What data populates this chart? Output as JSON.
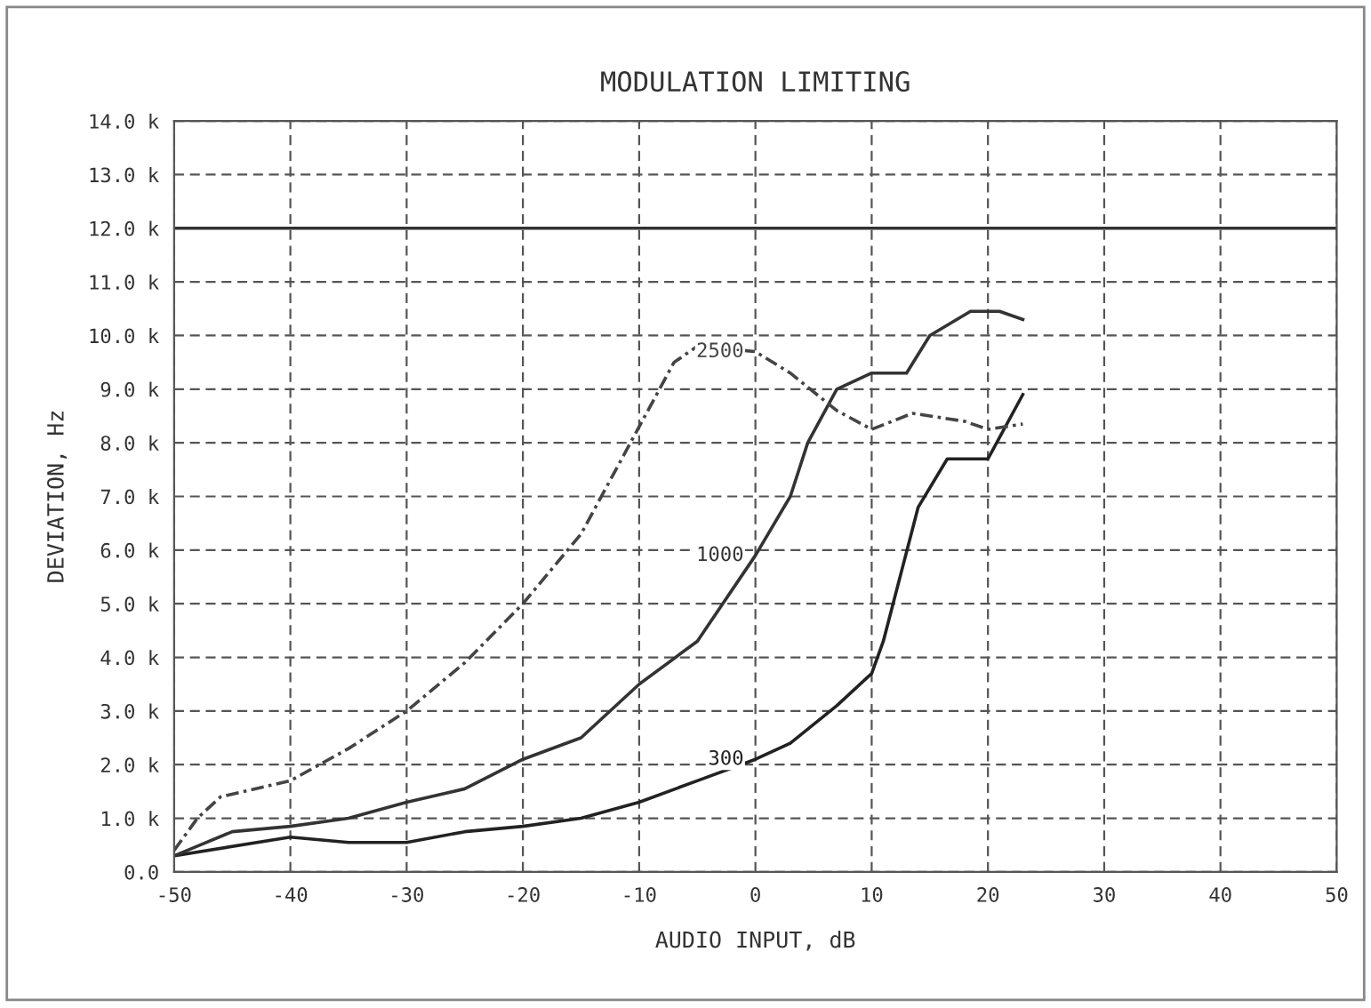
{
  "chart_data": {
    "type": "line",
    "title": "MODULATION LIMITING",
    "xlabel": "AUDIO INPUT, dB",
    "ylabel": "DEVIATION, Hz",
    "xlim": [
      -50,
      50
    ],
    "xticks": [
      -50,
      -40,
      -30,
      -20,
      -10,
      0,
      10,
      20,
      30,
      40,
      50
    ],
    "ylim": [
      0,
      14000
    ],
    "yticks": [
      {
        "value": 0,
        "label": "0.0"
      },
      {
        "value": 1000,
        "label": "1.0 k"
      },
      {
        "value": 2000,
        "label": "2.0 k"
      },
      {
        "value": 3000,
        "label": "3.0 k"
      },
      {
        "value": 4000,
        "label": "4.0 k"
      },
      {
        "value": 5000,
        "label": "5.0 k"
      },
      {
        "value": 6000,
        "label": "6.0 k"
      },
      {
        "value": 7000,
        "label": "7.0 k"
      },
      {
        "value": 8000,
        "label": "8.0 k"
      },
      {
        "value": 9000,
        "label": "9.0 k"
      },
      {
        "value": 10000,
        "label": "10.0 k"
      },
      {
        "value": 11000,
        "label": "11.0 k"
      },
      {
        "value": 12000,
        "label": "12.0 k"
      },
      {
        "value": 13000,
        "label": "13.0 k"
      },
      {
        "value": 14000,
        "label": "14.0 k"
      }
    ],
    "grid": true,
    "legend": false,
    "marker": "none",
    "ref_lines": [
      {
        "axis": "y",
        "value": 12000,
        "color": "#333333",
        "line_style": "solid"
      }
    ],
    "series": [
      {
        "name": "300",
        "color": "#222222",
        "line_style": "solid",
        "x": [
          -50,
          -40,
          -35,
          -30,
          -25,
          -20,
          -15,
          -10,
          -5,
          0,
          3,
          7,
          10,
          11,
          14,
          16.5,
          20,
          23
        ],
        "values": [
          300,
          650,
          550,
          550,
          750,
          850,
          1000,
          1300,
          1700,
          2100,
          2400,
          3100,
          3700,
          4300,
          6800,
          7700,
          7700,
          8900
        ]
      },
      {
        "name": "1000",
        "color": "#333333",
        "line_style": "solid",
        "x": [
          -50,
          -45,
          -40,
          -35,
          -30,
          -25,
          -20,
          -15,
          -10,
          -5,
          0,
          3,
          4.5,
          7,
          10,
          13,
          15,
          18.5,
          21,
          23
        ],
        "values": [
          300,
          750,
          850,
          1000,
          1300,
          1550,
          2100,
          2500,
          3500,
          4300,
          5900,
          7000,
          8000,
          9000,
          9300,
          9300,
          10000,
          10450,
          10450,
          10300
        ]
      },
      {
        "name": "2500",
        "color": "#444444",
        "line_style": "dashed",
        "x": [
          -50,
          -48,
          -46,
          -40,
          -35,
          -30,
          -25,
          -20,
          -15,
          -10,
          -7,
          -5,
          0,
          3,
          7,
          10,
          13.5,
          18,
          20,
          23
        ],
        "values": [
          400,
          1000,
          1400,
          1700,
          2300,
          3000,
          3900,
          5000,
          6300,
          8300,
          9500,
          9800,
          9700,
          9300,
          8600,
          8250,
          8550,
          8400,
          8250,
          8350
        ]
      }
    ]
  }
}
